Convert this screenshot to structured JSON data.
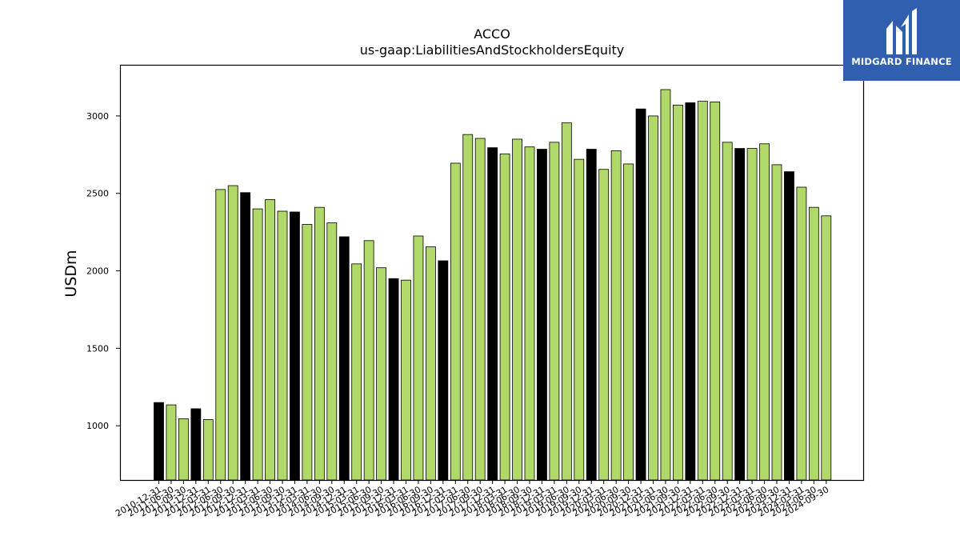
{
  "brand": {
    "name": "MIDGARD FINANCE",
    "icon": "midgard-logo-icon",
    "background": "#2f5fae"
  },
  "chart_data": {
    "type": "bar",
    "title": "ACCO",
    "subtitle": "us-gaap:LiabilitiesAndStockholdersEquity",
    "xlabel": "",
    "ylabel": "USDm",
    "ylim": [
      650,
      3330
    ],
    "yticks": [
      1000,
      1500,
      2000,
      2500,
      3000
    ],
    "grid": false,
    "colors": {
      "quarter": "#b0d96a",
      "year_end": "#000000",
      "edge": "#000000"
    },
    "categories": [
      "2010-12-31",
      "2011-06-30",
      "2011-09-30",
      "2011-12-31",
      "2012-03-31",
      "2012-06-30",
      "2012-09-30",
      "2012-12-31",
      "2013-03-31",
      "2013-06-30",
      "2013-09-30",
      "2013-12-31",
      "2014-03-31",
      "2014-06-30",
      "2014-09-30",
      "2014-12-31",
      "2015-03-31",
      "2015-06-30",
      "2015-09-30",
      "2015-12-31",
      "2016-03-31",
      "2016-06-30",
      "2016-09-30",
      "2016-12-31",
      "2017-03-31",
      "2017-06-30",
      "2017-09-30",
      "2017-12-31",
      "2018-03-31",
      "2018-06-30",
      "2018-09-30",
      "2018-12-31",
      "2019-03-31",
      "2019-06-30",
      "2019-09-30",
      "2019-12-31",
      "2020-03-31",
      "2020-06-30",
      "2020-09-30",
      "2020-12-31",
      "2021-03-31",
      "2021-06-30",
      "2021-09-30",
      "2021-12-31",
      "2022-03-31",
      "2022-06-30",
      "2022-09-30",
      "2022-12-31",
      "2023-03-31",
      "2023-06-30",
      "2023-09-30",
      "2023-12-31",
      "2024-03-31",
      "2024-06-30",
      "2024-09-30"
    ],
    "values": [
      1150,
      1135,
      1045,
      1110,
      1040,
      2525,
      2550,
      2505,
      2400,
      2460,
      2385,
      2380,
      2300,
      2410,
      2310,
      2220,
      2045,
      2195,
      2020,
      1950,
      1940,
      2225,
      2155,
      2065,
      2695,
      2880,
      2855,
      2795,
      2755,
      2850,
      2800,
      2785,
      2830,
      2955,
      2720,
      2785,
      2655,
      2775,
      2690,
      3045,
      3000,
      3170,
      3070,
      3085,
      3095,
      3090,
      2830,
      2790,
      2790,
      2820,
      2685,
      2640,
      2540,
      2410,
      2355
    ],
    "year_end": [
      true,
      false,
      false,
      true,
      false,
      false,
      false,
      true,
      false,
      false,
      false,
      true,
      false,
      false,
      false,
      true,
      false,
      false,
      false,
      true,
      false,
      false,
      false,
      true,
      false,
      false,
      false,
      true,
      false,
      false,
      false,
      true,
      false,
      false,
      false,
      true,
      false,
      false,
      false,
      true,
      false,
      false,
      false,
      true,
      false,
      false,
      false,
      true,
      false,
      false,
      false,
      true,
      false,
      false,
      false
    ]
  }
}
